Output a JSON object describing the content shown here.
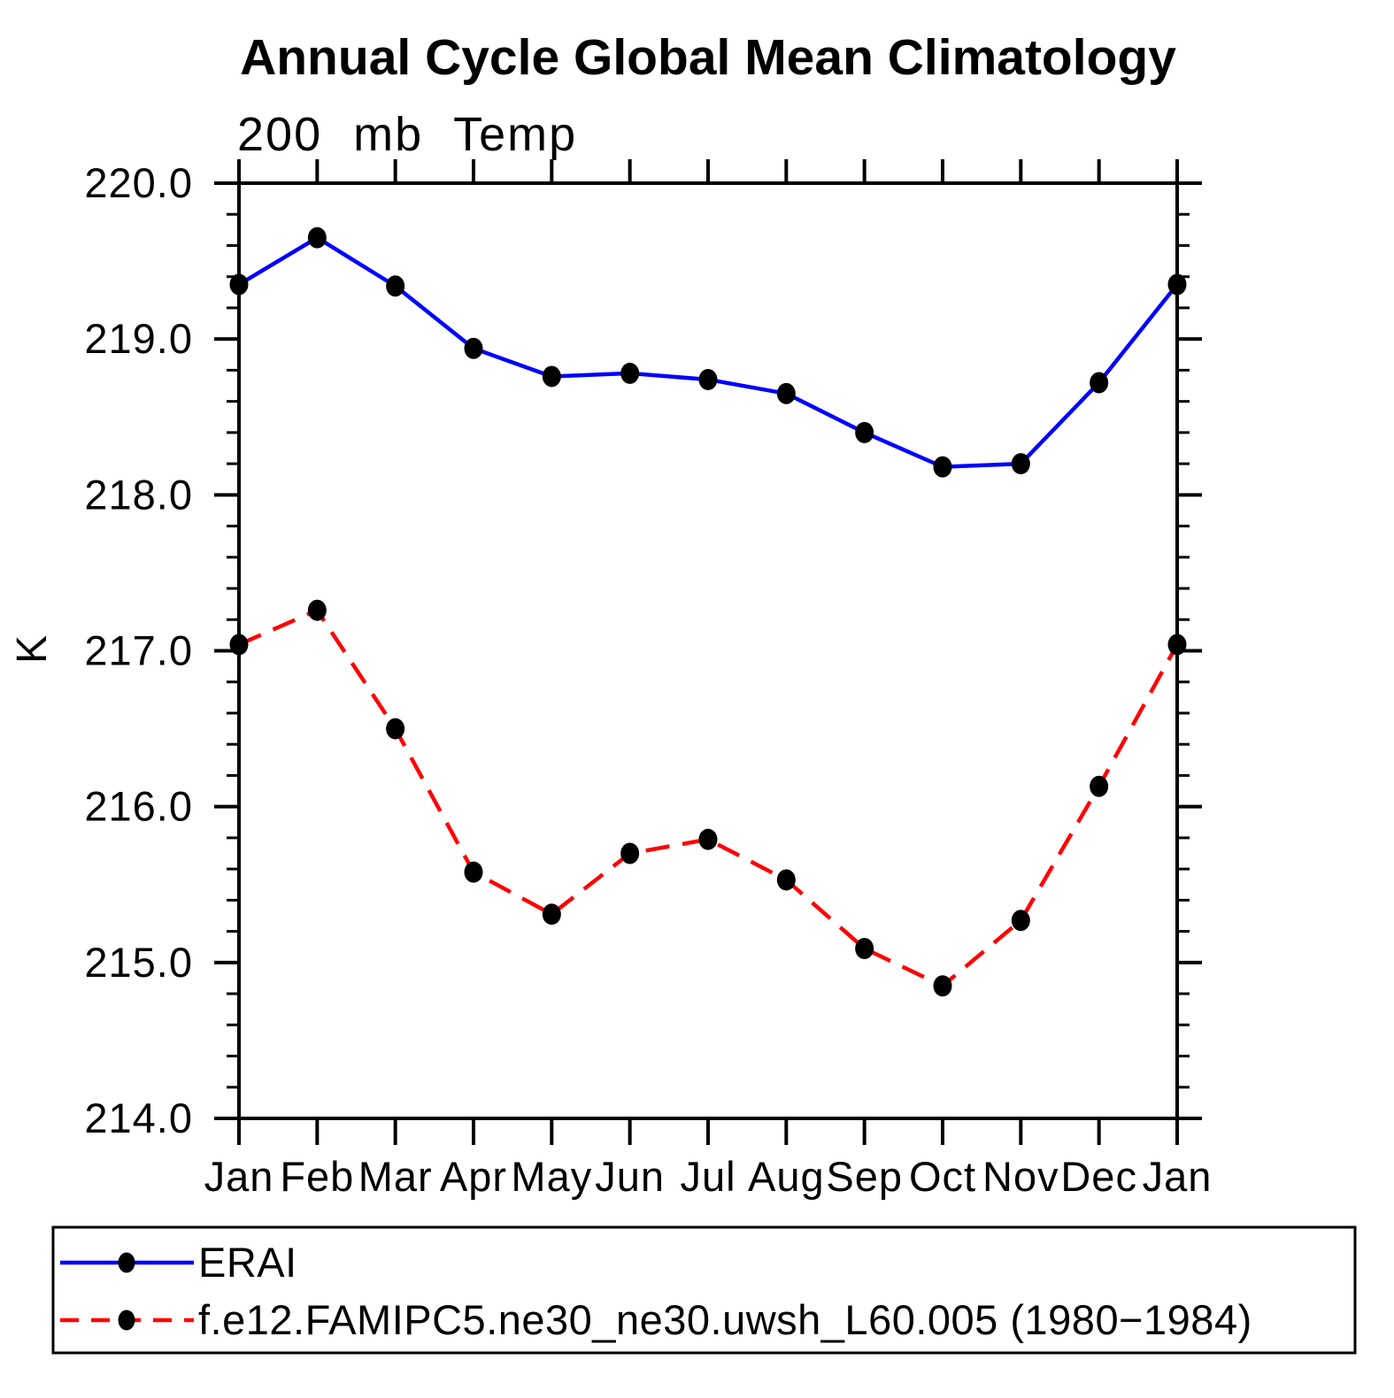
{
  "title": "Annual Cycle Global Mean Climatology",
  "subtitle": "200 mb Temp",
  "ylabel": "K",
  "legend": {
    "entries": [
      {
        "label": "ERAI",
        "color": "#0000ff",
        "style": "solid"
      },
      {
        "label": "f.e12.FAMIPC5.ne30_ne30.uwsh_L60.005 (1980−1984)",
        "color": "#ff0000",
        "style": "dashed"
      }
    ]
  },
  "chart_data": {
    "type": "line",
    "title": "Annual Cycle Global Mean Climatology",
    "subtitle": "200 mb Temp",
    "xlabel": "",
    "ylabel": "K",
    "categories": [
      "Jan",
      "Feb",
      "Mar",
      "Apr",
      "May",
      "Jun",
      "Jul",
      "Aug",
      "Sep",
      "Oct",
      "Nov",
      "Dec",
      "Jan"
    ],
    "ylim": [
      214.0,
      220.0
    ],
    "ytick_interval": 1.0,
    "yminor_interval": 0.2,
    "ytick_labels": [
      "214.0",
      "215.0",
      "216.0",
      "217.0",
      "218.0",
      "219.0",
      "220.0"
    ],
    "grid": false,
    "legend_position": "bottom",
    "marker_color": "#000000",
    "series": [
      {
        "name": "ERAI",
        "color": "#0000ff",
        "style": "solid",
        "marker": "circle",
        "values": [
          219.35,
          219.65,
          219.34,
          218.94,
          218.76,
          218.78,
          218.74,
          218.65,
          218.4,
          218.18,
          218.2,
          218.72,
          219.35
        ]
      },
      {
        "name": "f.e12.FAMIPC5.ne30_ne30.uwsh_L60.005 (1980−1984)",
        "color": "#ff0000",
        "style": "dashed",
        "marker": "circle",
        "values": [
          217.04,
          217.26,
          216.5,
          215.58,
          215.31,
          215.7,
          215.79,
          215.53,
          215.09,
          214.85,
          215.27,
          216.13,
          217.04
        ]
      }
    ]
  }
}
